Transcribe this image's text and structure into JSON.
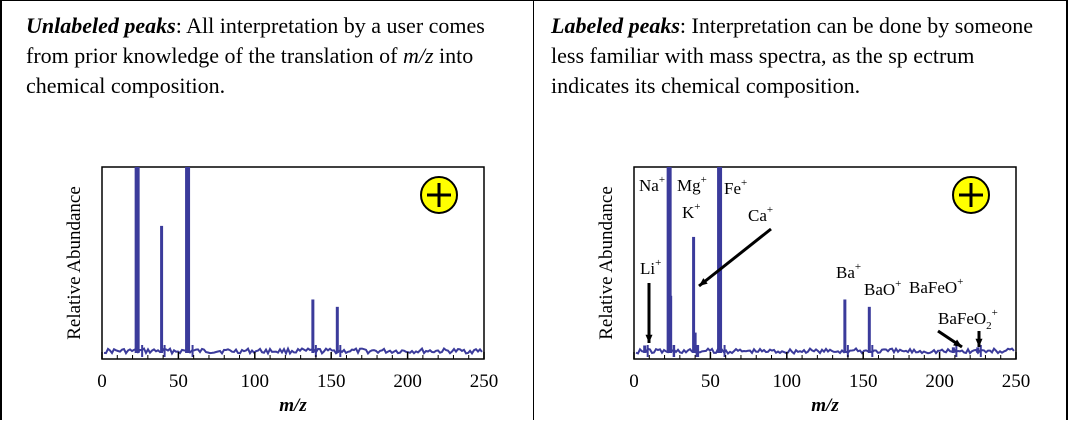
{
  "left": {
    "heading": "Unlabeled peaks",
    "caption": ": All interpretation by a user comes from prior knowledge of the translation of ",
    "caption_italic": "m/z",
    "caption_end": " into chemical composition."
  },
  "right": {
    "heading": "Labeled peaks",
    "caption": ":  Interpretation can be done by someone less familiar with mass spectra, as the sp ectrum indicates its chemical composition."
  },
  "chart_data": [
    {
      "type": "line",
      "panel": "left",
      "ylabel": "Relative Abundance",
      "xlabel": "m/z",
      "xlim": [
        0,
        250
      ],
      "xticks": [
        "0",
        "50",
        "100",
        "150",
        "200",
        "250"
      ],
      "polarity_symbol": "+",
      "peaks": [
        {
          "x": 23,
          "y": 1.0
        },
        {
          "x": 39,
          "y": 0.68
        },
        {
          "x": 56,
          "y": 1.0
        },
        {
          "x": 138,
          "y": 0.28
        },
        {
          "x": 154,
          "y": 0.24
        }
      ]
    },
    {
      "type": "line",
      "panel": "right",
      "ylabel": "Relative Abundance",
      "xlabel": "m/z",
      "xlim": [
        0,
        250
      ],
      "xticks": [
        "0",
        "50",
        "100",
        "150",
        "200",
        "250"
      ],
      "polarity_symbol": "+",
      "peaks": [
        {
          "x": 7,
          "y": 0.03
        },
        {
          "x": 23,
          "y": 1.0
        },
        {
          "x": 24,
          "y": 0.3
        },
        {
          "x": 39,
          "y": 0.62
        },
        {
          "x": 40,
          "y": 0.1
        },
        {
          "x": 56,
          "y": 1.0
        },
        {
          "x": 138,
          "y": 0.28
        },
        {
          "x": 154,
          "y": 0.24
        },
        {
          "x": 209,
          "y": 0.02
        },
        {
          "x": 225,
          "y": 0.02
        }
      ],
      "labels": [
        {
          "text": "Li",
          "sup": "+"
        },
        {
          "text": "Na",
          "sup": "+"
        },
        {
          "text": "Mg",
          "sup": "+"
        },
        {
          "text": "K",
          "sup": "+"
        },
        {
          "text": "Fe",
          "sup": "+"
        },
        {
          "text": "Ca",
          "sup": "+"
        },
        {
          "text": "Ba",
          "sup": "+"
        },
        {
          "text": "BaO",
          "sup": "+"
        },
        {
          "text": "BaFeO",
          "sup": "+"
        },
        {
          "text": "BaFeO",
          "sub": "2",
          "sup": "+"
        }
      ]
    }
  ]
}
